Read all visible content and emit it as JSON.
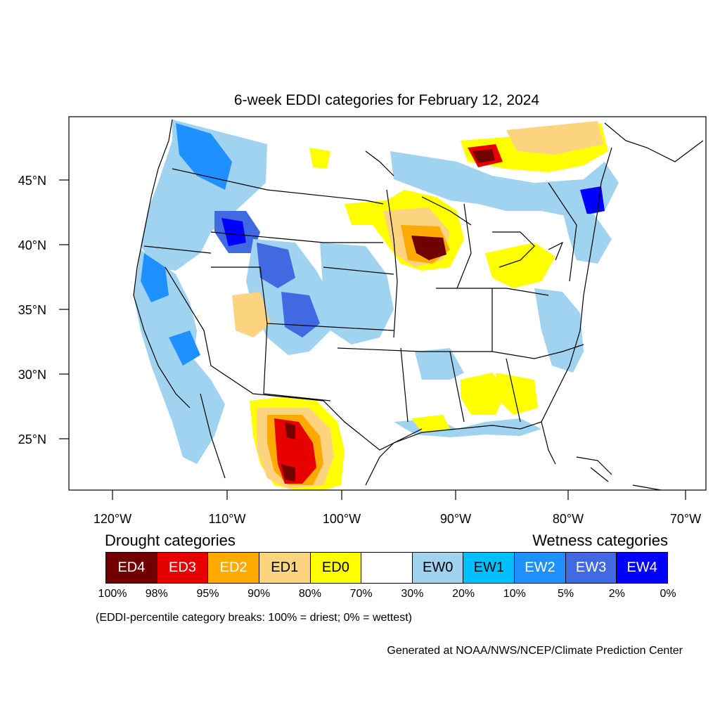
{
  "map": {
    "title": "6-week EDDI categories for February 12, 2024",
    "lat_labels": [
      "45°N",
      "40°N",
      "35°N",
      "30°N",
      "25°N"
    ],
    "lon_labels": [
      "120°W",
      "110°W",
      "100°W",
      "90°W",
      "80°W",
      "70°W"
    ]
  },
  "legend": {
    "drought_heading": "Drought categories",
    "wetness_heading": "Wetness categories",
    "categories": [
      {
        "label": "ED4",
        "color": "#730000"
      },
      {
        "label": "ED3",
        "color": "#e60000"
      },
      {
        "label": "ED2",
        "color": "#ffaa00"
      },
      {
        "label": "ED1",
        "color": "#fcd37f"
      },
      {
        "label": "ED0",
        "color": "#ffff00"
      },
      {
        "label": "",
        "color": "#ffffff"
      },
      {
        "label": "EW0",
        "color": "#9fd3f0"
      },
      {
        "label": "EW1",
        "color": "#00bfff"
      },
      {
        "label": "EW2",
        "color": "#1e90ff"
      },
      {
        "label": "EW3",
        "color": "#4169e1"
      },
      {
        "label": "EW4",
        "color": "#0000ff"
      }
    ],
    "percentiles": [
      "100%",
      "98%",
      "95%",
      "90%",
      "80%",
      "70%",
      "30%",
      "20%",
      "10%",
      "5%",
      "2%",
      "0%"
    ],
    "note": "(EDDI-percentile category breaks: 100% = driest; 0% = wettest)",
    "credit": "Generated at NOAA/NWS/NCEP/Climate Prediction Center"
  }
}
